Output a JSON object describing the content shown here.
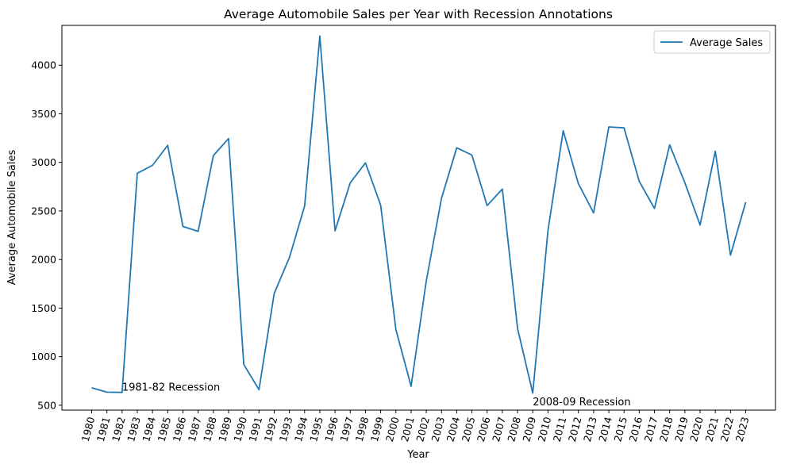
{
  "chart_data": {
    "type": "line",
    "title": "Average Automobile Sales per Year with Recession Annotations",
    "xlabel": "Year",
    "ylabel": "Average Automobile Sales",
    "x": [
      1980,
      1981,
      1982,
      1983,
      1984,
      1985,
      1986,
      1987,
      1988,
      1989,
      1990,
      1991,
      1992,
      1993,
      1994,
      1995,
      1996,
      1997,
      1998,
      1999,
      2000,
      2001,
      2002,
      2003,
      2004,
      2005,
      2006,
      2007,
      2008,
      2009,
      2010,
      2011,
      2012,
      2013,
      2014,
      2015,
      2016,
      2017,
      2018,
      2019,
      2020,
      2021,
      2022,
      2023
    ],
    "series": [
      {
        "name": "Average Sales",
        "color": "#1f77b4",
        "values": [
          680,
          635,
          632,
          2888,
          2970,
          3175,
          2340,
          2290,
          3070,
          3245,
          920,
          660,
          1650,
          2020,
          2550,
          4300,
          2295,
          2790,
          2995,
          2560,
          1280,
          695,
          1780,
          2630,
          3150,
          3075,
          2555,
          2725,
          1290,
          625,
          2300,
          3325,
          2780,
          2480,
          3365,
          3355,
          2805,
          2525,
          3180,
          2790,
          2355,
          3115,
          2045,
          2590
        ]
      }
    ],
    "ylim": [
      450,
      4410
    ],
    "yticks": [
      500,
      1000,
      1500,
      2000,
      2500,
      3000,
      3500,
      4000
    ],
    "grid": false,
    "legend": {
      "placement": "top-right"
    },
    "annotations": [
      {
        "text": "1981-82 Recession",
        "x": 1982,
        "y": 650
      },
      {
        "text": "2008-09 Recession",
        "x": 2009,
        "y": 500
      }
    ]
  }
}
